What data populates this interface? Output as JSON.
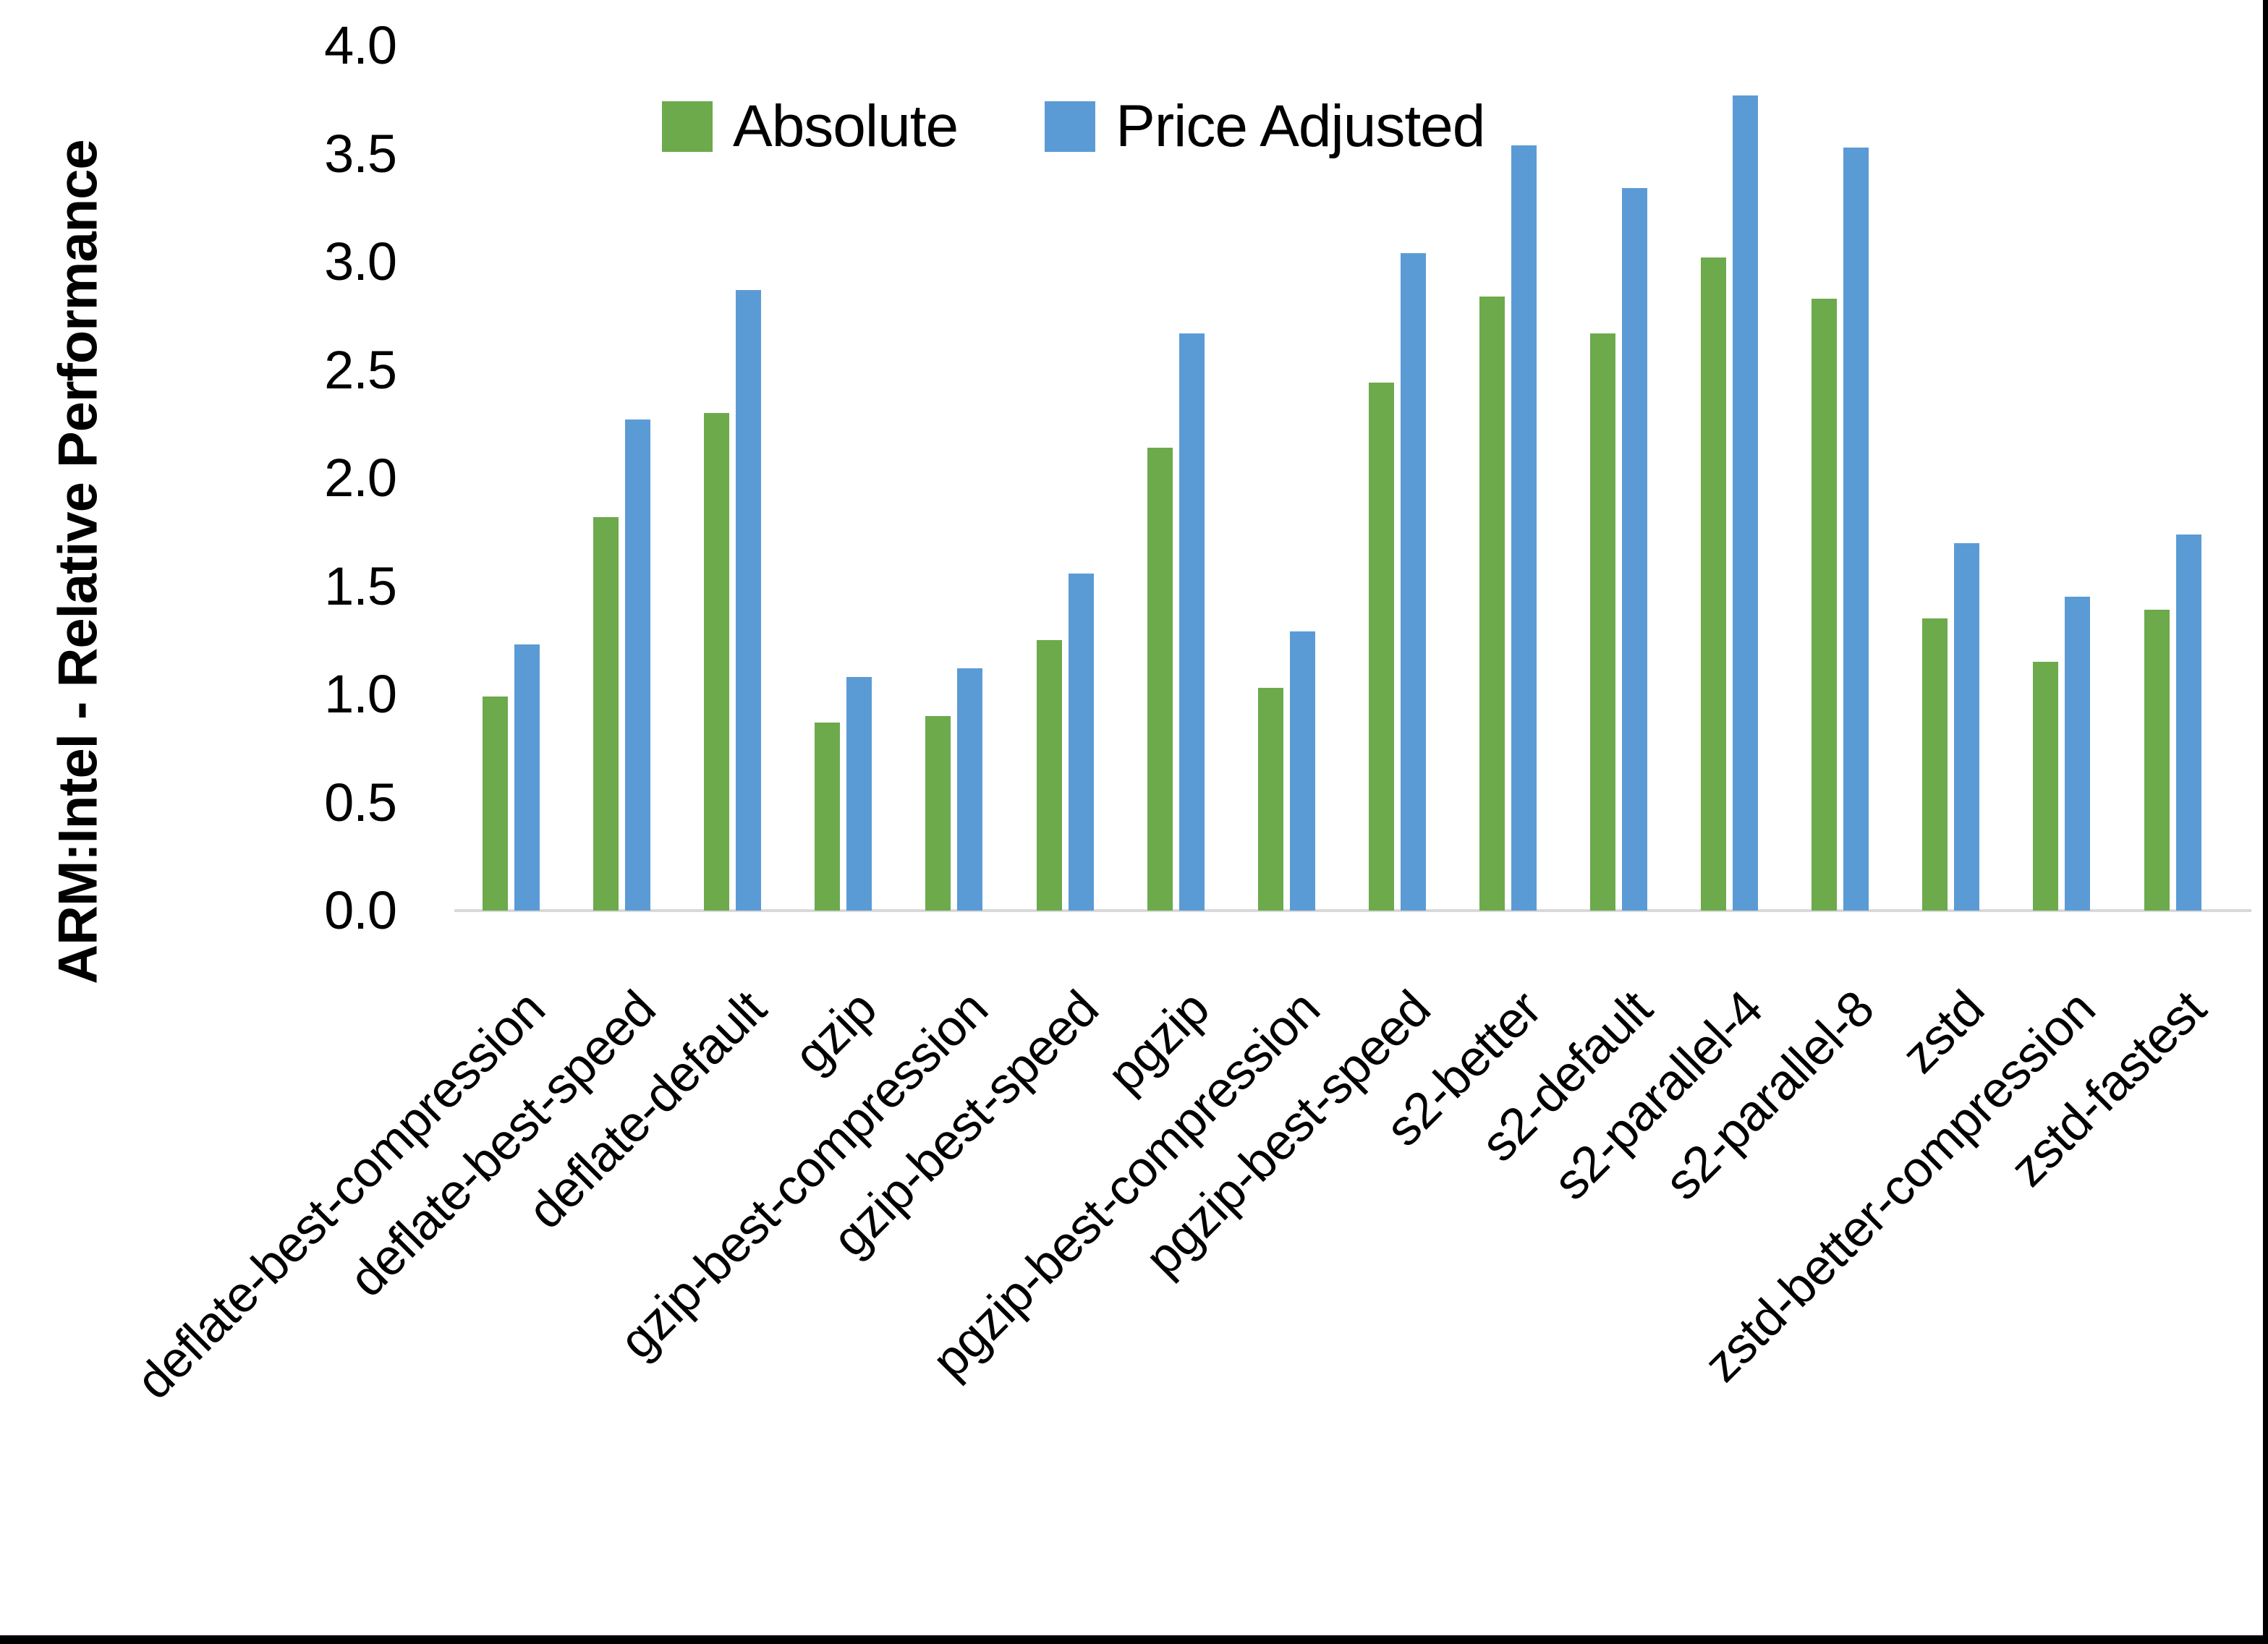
{
  "chart_data": {
    "type": "bar",
    "title": "",
    "xlabel": "",
    "ylabel": "ARM:Intel - Relative Performance",
    "ylim": [
      0,
      4
    ],
    "ytick_step": 0.5,
    "grid": false,
    "legend_position": "top-center",
    "categories": [
      "deflate-best-compression",
      "deflate-best-speed",
      "deflate-default",
      "gzip",
      "gzip-best-compression",
      "gzip-best-speed",
      "pgzip",
      "pgzip-best-compression",
      "pgzip-best-speed",
      "s2-better",
      "s2-default",
      "s2-parallel-4",
      "s2-parallel-8",
      "zstd",
      "zstd-better-compression",
      "zstd-fastest"
    ],
    "series": [
      {
        "name": "Absolute",
        "color": "#6CAA4C",
        "values": [
          0.99,
          1.82,
          2.3,
          0.87,
          0.9,
          1.25,
          2.14,
          1.03,
          2.44,
          2.84,
          2.67,
          3.02,
          2.83,
          1.35,
          1.15,
          1.39
        ]
      },
      {
        "name": "Price Adjusted",
        "color": "#5B9BD5",
        "values": [
          1.23,
          2.27,
          2.87,
          1.08,
          1.12,
          1.56,
          2.67,
          1.29,
          3.04,
          3.54,
          3.34,
          3.77,
          3.53,
          1.7,
          1.45,
          1.74
        ]
      }
    ],
    "axis_line_color": "#d9d9d9",
    "text_color": "#000000"
  }
}
